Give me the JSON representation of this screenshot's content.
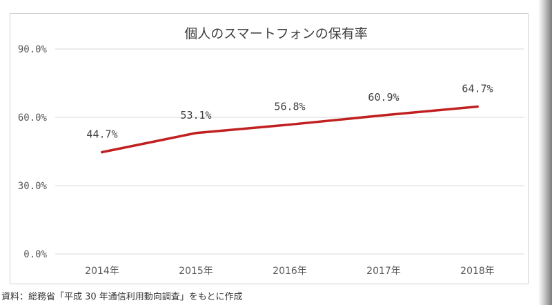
{
  "chart_data": {
    "type": "line",
    "title": "個人のスマートフォンの保有率",
    "categories": [
      "2014年",
      "2015年",
      "2016年",
      "2017年",
      "2018年"
    ],
    "series": [
      {
        "values": [
          44.7,
          53.1,
          56.8,
          60.9,
          64.7
        ],
        "color": "#c0201f"
      }
    ],
    "data_labels": [
      "44.7%",
      "53.1%",
      "56.8%",
      "60.9%",
      "64.7%"
    ],
    "y_ticks": [
      {
        "value": 0,
        "label": "0.0%"
      },
      {
        "value": 30,
        "label": "30.0%"
      },
      {
        "value": 60,
        "label": "60.0%"
      },
      {
        "value": 90,
        "label": "90.0%"
      }
    ],
    "ylim": [
      0,
      90
    ],
    "grid": true,
    "gridline_color": "#d9d9d9",
    "legend": "none"
  },
  "source_note": "資料：総務省「平成 30 年通信利用動向調査」をもとに作成"
}
